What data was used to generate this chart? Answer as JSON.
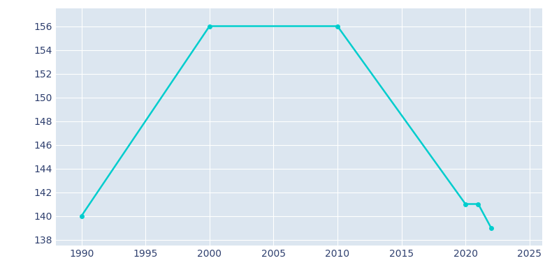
{
  "years": [
    1990,
    2000,
    2010,
    2020,
    2021,
    2022
  ],
  "population": [
    140,
    156,
    156,
    141,
    141,
    139
  ],
  "line_color": "#00CDCD",
  "marker_color": "#00CDCD",
  "background_color": "#ffffff",
  "plot_bg_color": "#dce6f0",
  "xlabel": "",
  "ylabel": "",
  "xlim": [
    1988,
    2026
  ],
  "ylim": [
    137.5,
    157.5
  ],
  "yticks": [
    138,
    140,
    142,
    144,
    146,
    148,
    150,
    152,
    154,
    156
  ],
  "xticks": [
    1990,
    1995,
    2000,
    2005,
    2010,
    2015,
    2020,
    2025
  ],
  "grid_color": "#ffffff",
  "tick_label_color": "#2e3f6e",
  "line_width": 1.8,
  "marker_size": 4
}
